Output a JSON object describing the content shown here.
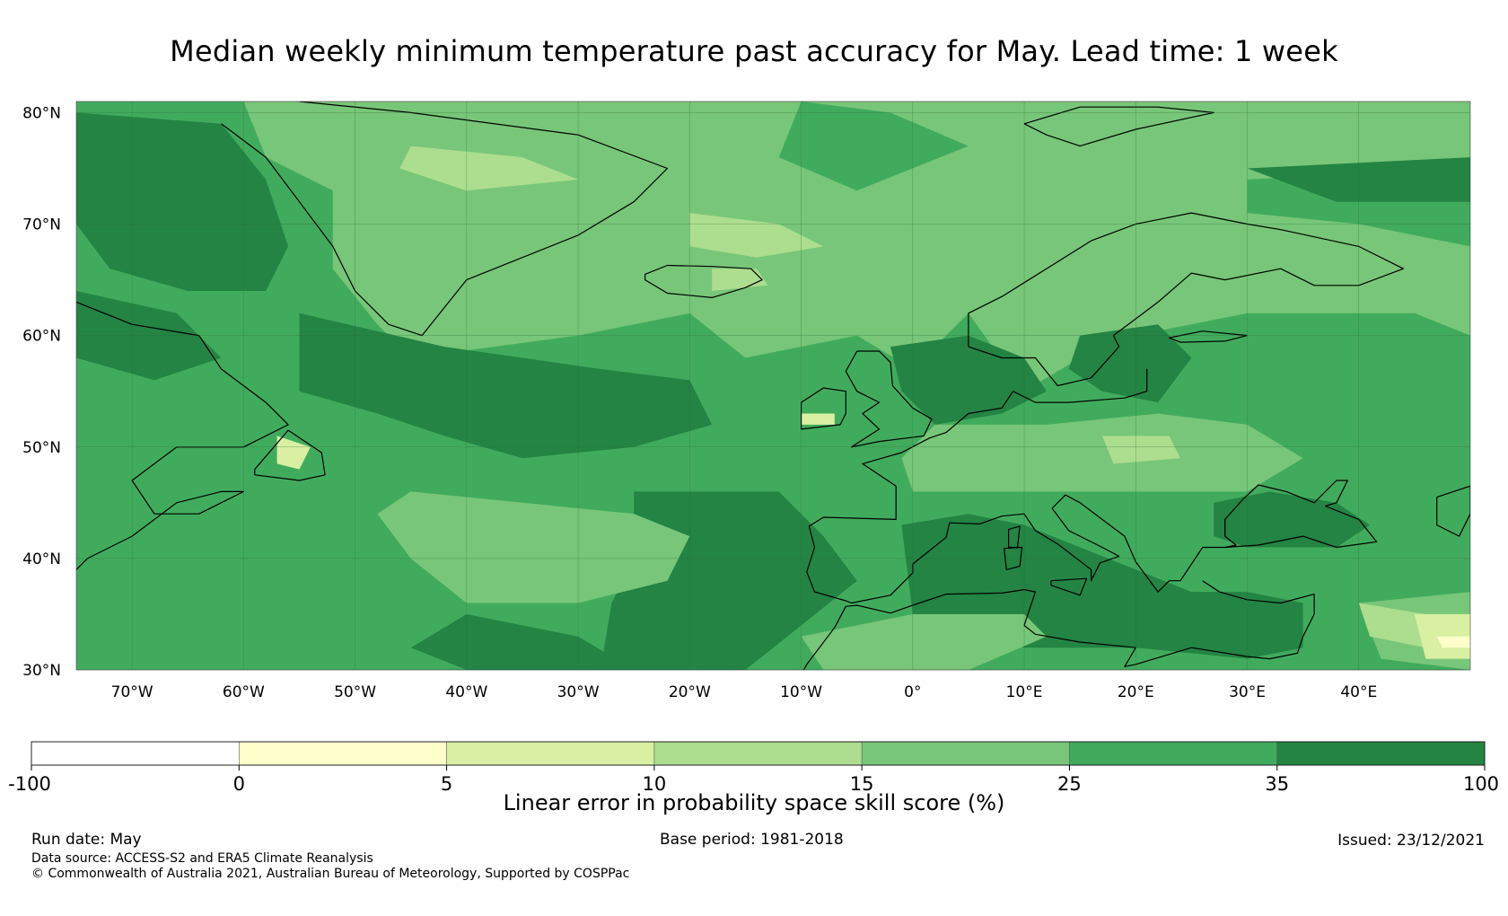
{
  "title": "Median weekly minimum temperature past accuracy for May. Lead time: 1 week",
  "map": {
    "lat_labels": [
      "80°N",
      "70°N",
      "60°N",
      "50°N",
      "40°N",
      "30°N"
    ],
    "lon_labels": [
      "70°W",
      "60°W",
      "50°W",
      "40°W",
      "30°W",
      "20°W",
      "10°W",
      "0°",
      "10°E",
      "20°E",
      "30°E",
      "40°E"
    ],
    "extent": {
      "lon_min": -75,
      "lon_max": 50,
      "lat_min": 30,
      "lat_max": 81
    },
    "dominant_color": "#41a55a"
  },
  "colorbar": {
    "title": "Linear error in probability space skill score (%)",
    "boundaries": [
      "-100",
      "0",
      "5",
      "10",
      "15",
      "25",
      "35",
      "100"
    ],
    "colors": [
      "#ffffff",
      "#ffffcc",
      "#d9f0a3",
      "#addd8e",
      "#78c679",
      "#41ab5d",
      "#238443"
    ]
  },
  "footer": {
    "run_date": "Run date: May",
    "base_period": "Base period: 1981-2018",
    "issued": "Issued: 23/12/2021",
    "data_source": "Data source: ACCESS-S2 and ERA5 Climate Reanalysis",
    "copyright": "© Commonwealth of Australia 2021, Australian Bureau of Meteorology, Supported by COSPPac"
  }
}
